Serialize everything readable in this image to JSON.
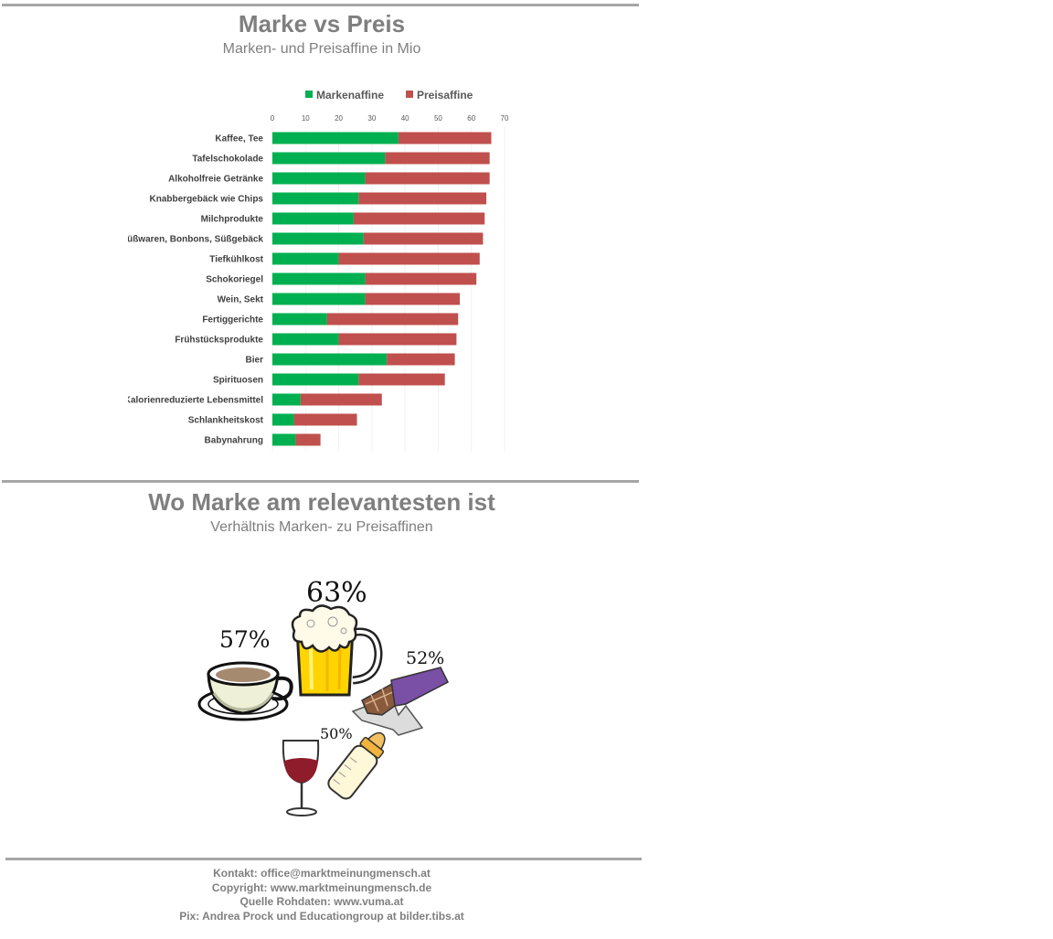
{
  "section1": {
    "title": "Marke vs Preis",
    "subtitle": "Marken- und Preisaffine in Mio"
  },
  "chart_data": {
    "type": "bar",
    "orientation": "horizontal",
    "stacked": true,
    "title": "",
    "xlabel": "",
    "ylabel": "",
    "xlim": [
      0,
      70
    ],
    "xticks": [
      0,
      10,
      20,
      30,
      40,
      50,
      60,
      70
    ],
    "legend_position": "top",
    "grid": true,
    "categories": [
      "Kaffee, Tee",
      "Tafelschokolade",
      "Alkoholfreie Getränke",
      "Knabbergebäck wie Chips",
      "Milchprodukte",
      "Süßwaren, Bonbons, Süßgebäck",
      "Tiefkühlkost",
      "Schokoriegel",
      "Wein, Sekt",
      "Fertiggerichte",
      "Frühstücksprodukte",
      "Bier",
      "Spirituosen",
      "Kalorienreduzierte Lebensmittel",
      "Schlankheitskost",
      "Babynahrung"
    ],
    "series": [
      {
        "name": "Markenaffine",
        "color": "#00b050",
        "values": [
          38,
          34,
          28,
          26,
          24.5,
          27.5,
          20,
          28,
          28,
          16.5,
          20,
          34.5,
          26,
          8.5,
          6.5,
          7
        ]
      },
      {
        "name": "Preisaffine",
        "color": "#c0504d",
        "values": [
          28,
          31.5,
          37.5,
          38.5,
          39.5,
          36,
          42.5,
          33.5,
          28.5,
          39.5,
          35.5,
          20.5,
          26,
          24.5,
          19,
          7.5
        ]
      }
    ]
  },
  "section2": {
    "title": "Wo Marke am relevantesten ist",
    "subtitle": "Verhältnis Marken- zu Preisaffinen",
    "items": [
      {
        "icon": "beer-mug-icon",
        "label": "63%"
      },
      {
        "icon": "coffee-cup-icon",
        "label": "57%"
      },
      {
        "icon": "chocolate-bar-icon",
        "label": "52%"
      },
      {
        "icon": "wine-glass-icon",
        "label": "50%"
      },
      {
        "icon": "baby-bottle-icon",
        "label": ""
      }
    ]
  },
  "footer": {
    "contact": "Kontakt: office@marktmeinungmensch.at",
    "copyright": "Copyright: www.marktmeinungmensch.de",
    "source": "Quelle Rohdaten: www.vuma.at",
    "pix": "Pix: Andrea Prock und Educationgroup at bilder.tibs.at"
  }
}
